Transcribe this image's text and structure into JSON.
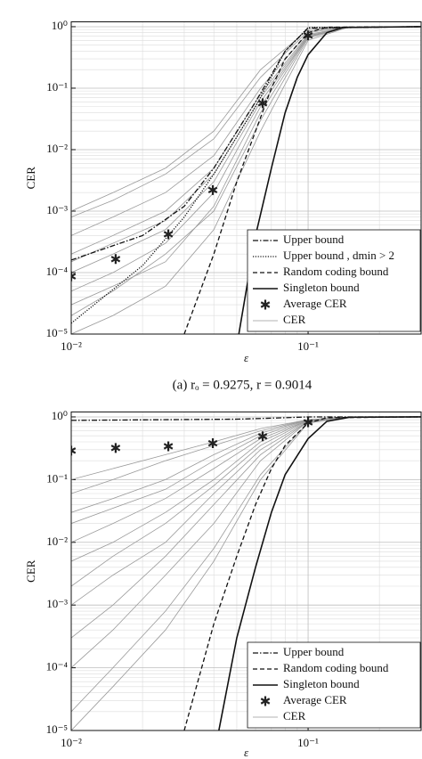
{
  "chart_data": [
    {
      "type": "line",
      "xlabel": "ε",
      "ylabel": "CER",
      "caption": "(a) rₒ = 0.9275, r = 0.9014",
      "xscale": "log",
      "yscale": "log",
      "grid": true,
      "legend": "lower right",
      "xlim": [
        0.01,
        0.3
      ],
      "ylim": [
        1e-05,
        1.2
      ],
      "xticks": [
        {
          "value": 0.01,
          "label": "10⁻²"
        },
        {
          "value": 0.1,
          "label": "10⁻¹"
        }
      ],
      "yticks": [
        {
          "value": 1e-05,
          "label": "10⁻⁵"
        },
        {
          "value": 0.0001,
          "label": "10⁻⁴"
        },
        {
          "value": 0.001,
          "label": "10⁻³"
        },
        {
          "value": 0.01,
          "label": "10⁻²"
        },
        {
          "value": 0.1,
          "label": "10⁻¹"
        },
        {
          "value": 1,
          "label": "10⁰"
        }
      ],
      "xminor": [
        0.02,
        0.03,
        0.04,
        0.05,
        0.06,
        0.07,
        0.08,
        0.09,
        0.2
      ],
      "yminor": [
        2e-05,
        3e-05,
        4e-05,
        5e-05,
        6e-05,
        7e-05,
        8e-05,
        9e-05,
        0.0002,
        0.0003,
        0.0004,
        0.0005,
        0.0006,
        0.0007,
        0.0008,
        0.0009,
        0.002,
        0.003,
        0.004,
        0.005,
        0.006,
        0.007,
        0.008,
        0.009,
        0.02,
        0.03,
        0.04,
        0.05,
        0.06,
        0.07,
        0.08,
        0.09,
        0.2,
        0.3,
        0.4,
        0.5,
        0.6,
        0.7,
        0.8,
        0.9
      ],
      "series": [
        {
          "name": "Upper bound",
          "color": "#111111",
          "style": "dashdot",
          "x": [
            0.01,
            0.02,
            0.03,
            0.04,
            0.06,
            0.08,
            0.1,
            0.3
          ],
          "values": [
            0.00016,
            0.0004,
            0.0012,
            0.005,
            0.06,
            0.4,
            0.95,
            1
          ]
        },
        {
          "name": "Upper bound , dmin > 2",
          "color": "#111111",
          "style": "dotted",
          "x": [
            0.01,
            0.02,
            0.03,
            0.04,
            0.06,
            0.08,
            0.1,
            0.3
          ],
          "values": [
            1.5e-05,
            0.00013,
            0.0008,
            0.004,
            0.05,
            0.4,
            0.97,
            1
          ]
        },
        {
          "name": "Random coding bound",
          "color": "#111111",
          "style": "dashed",
          "x": [
            0.03,
            0.04,
            0.05,
            0.06,
            0.07,
            0.08,
            0.1,
            0.12,
            0.3
          ],
          "values": [
            1e-05,
            0.0002,
            0.003,
            0.02,
            0.1,
            0.3,
            0.8,
            0.98,
            1
          ]
        },
        {
          "name": "Singleton bound",
          "color": "#111111",
          "style": "solid",
          "x": [
            0.051,
            0.06,
            0.07,
            0.08,
            0.09,
            0.1,
            0.12,
            0.14,
            0.3
          ],
          "values": [
            1e-05,
            0.0004,
            0.005,
            0.04,
            0.15,
            0.35,
            0.8,
            0.97,
            1
          ]
        },
        {
          "name": "Average CER",
          "color": "#222222",
          "style": "markers",
          "x": [
            0.01,
            0.0154,
            0.0257,
            0.0396,
            0.0643,
            0.1
          ],
          "values": [
            8.7e-05,
            0.000166,
            0.00042,
            0.0022,
            0.057,
            0.72
          ]
        }
      ],
      "cer_curves": {
        "name": "CER",
        "color": "#9a9a9a",
        "x": [
          0.01,
          0.015,
          0.025,
          0.04,
          0.063,
          0.1,
          0.15
        ],
        "values": [
          [
            1e-05,
            2e-05,
            6e-05,
            0.0005,
            0.02,
            0.6,
            1
          ],
          [
            2e-05,
            5e-05,
            0.0002,
            0.001,
            0.03,
            0.65,
            1
          ],
          [
            5e-05,
            0.0001,
            0.0003,
            0.002,
            0.05,
            0.7,
            1
          ],
          [
            0.0001,
            0.0002,
            0.0005,
            0.003,
            0.06,
            0.7,
            1
          ],
          [
            0.0002,
            0.0004,
            0.001,
            0.005,
            0.08,
            0.75,
            1
          ],
          [
            0.0004,
            0.0008,
            0.002,
            0.008,
            0.1,
            0.8,
            1
          ],
          [
            0.0008,
            0.0015,
            0.004,
            0.015,
            0.15,
            0.85,
            1
          ],
          [
            0.001,
            0.002,
            0.005,
            0.02,
            0.2,
            0.9,
            1
          ],
          [
            3e-05,
            6e-05,
            0.00015,
            0.0012,
            0.04,
            0.68,
            1
          ],
          [
            0.00015,
            0.0003,
            0.0007,
            0.004,
            0.07,
            0.72,
            1
          ]
        ]
      }
    },
    {
      "type": "line",
      "xlabel": "ε",
      "ylabel": "CER",
      "xscale": "log",
      "yscale": "log",
      "grid": true,
      "legend": "lower right",
      "xlim": [
        0.01,
        0.3
      ],
      "ylim": [
        1e-05,
        1.2
      ],
      "xticks": [
        {
          "value": 0.01,
          "label": "10⁻²"
        },
        {
          "value": 0.1,
          "label": "10⁻¹"
        }
      ],
      "yticks": [
        {
          "value": 1e-05,
          "label": "10⁻⁵"
        },
        {
          "value": 0.0001,
          "label": "10⁻⁴"
        },
        {
          "value": 0.001,
          "label": "10⁻³"
        },
        {
          "value": 0.01,
          "label": "10⁻²"
        },
        {
          "value": 0.1,
          "label": "10⁻¹"
        },
        {
          "value": 1,
          "label": "10⁰"
        }
      ],
      "xminor": [
        0.02,
        0.03,
        0.04,
        0.05,
        0.06,
        0.07,
        0.08,
        0.09,
        0.2
      ],
      "yminor": [
        2e-05,
        3e-05,
        4e-05,
        5e-05,
        6e-05,
        7e-05,
        8e-05,
        9e-05,
        0.0002,
        0.0003,
        0.0004,
        0.0005,
        0.0006,
        0.0007,
        0.0008,
        0.0009,
        0.002,
        0.003,
        0.004,
        0.005,
        0.006,
        0.007,
        0.008,
        0.009,
        0.02,
        0.03,
        0.04,
        0.05,
        0.06,
        0.07,
        0.08,
        0.09,
        0.2,
        0.3,
        0.4,
        0.5,
        0.6,
        0.7,
        0.8,
        0.9
      ],
      "series": [
        {
          "name": "Upper bound",
          "color": "#111111",
          "style": "dashdot",
          "x": [
            0.01,
            0.05,
            0.08,
            0.1,
            0.3
          ],
          "values": [
            0.88,
            0.92,
            0.97,
            1,
            1
          ]
        },
        {
          "name": "Random coding bound",
          "color": "#111111",
          "style": "dashed",
          "x": [
            0.03,
            0.04,
            0.05,
            0.06,
            0.07,
            0.08,
            0.1,
            0.12,
            0.3
          ],
          "values": [
            1e-05,
            0.0005,
            0.006,
            0.04,
            0.15,
            0.35,
            0.8,
            0.97,
            1
          ]
        },
        {
          "name": "Singleton bound",
          "color": "#111111",
          "style": "solid",
          "x": [
            0.042,
            0.05,
            0.06,
            0.07,
            0.08,
            0.1,
            0.12,
            0.15,
            0.3
          ],
          "values": [
            1e-05,
            0.0003,
            0.004,
            0.03,
            0.12,
            0.45,
            0.85,
            0.99,
            1
          ]
        },
        {
          "name": "Average CER",
          "color": "#222222",
          "style": "markers",
          "x": [
            0.01,
            0.0154,
            0.0257,
            0.0396,
            0.0643,
            0.1
          ],
          "values": [
            0.29,
            0.32,
            0.34,
            0.38,
            0.49,
            0.82
          ]
        }
      ],
      "cer_curves": {
        "name": "CER",
        "color": "#9a9a9a",
        "x": [
          0.01,
          0.015,
          0.025,
          0.04,
          0.063,
          0.1,
          0.15
        ],
        "values": [
          [
            1e-05,
            5e-05,
            0.0004,
            0.005,
            0.1,
            0.8,
            1
          ],
          [
            0.0001,
            0.0004,
            0.003,
            0.02,
            0.2,
            0.85,
            1
          ],
          [
            0.001,
            0.003,
            0.01,
            0.06,
            0.3,
            0.85,
            1
          ],
          [
            0.005,
            0.01,
            0.03,
            0.1,
            0.4,
            0.88,
            1
          ],
          [
            0.01,
            0.02,
            0.05,
            0.15,
            0.45,
            0.88,
            1
          ],
          [
            0.03,
            0.05,
            0.1,
            0.25,
            0.55,
            0.9,
            1
          ],
          [
            0.06,
            0.1,
            0.2,
            0.35,
            0.6,
            0.9,
            1
          ],
          [
            0.1,
            0.15,
            0.25,
            0.4,
            0.65,
            0.9,
            1
          ],
          [
            0.0003,
            0.001,
            0.006,
            0.04,
            0.25,
            0.85,
            1
          ],
          [
            0.002,
            0.006,
            0.02,
            0.08,
            0.35,
            0.87,
            1
          ],
          [
            2e-05,
            0.0001,
            0.0008,
            0.008,
            0.12,
            0.82,
            1
          ],
          [
            0.02,
            0.035,
            0.07,
            0.2,
            0.5,
            0.89,
            1
          ]
        ]
      }
    }
  ]
}
